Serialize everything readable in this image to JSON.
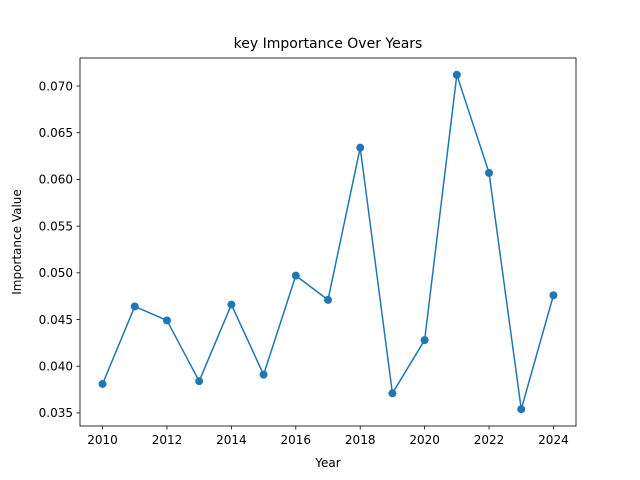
{
  "chart_data": {
    "type": "line",
    "title": "key Importance Over Years",
    "xlabel": "Year",
    "ylabel": "Importance Value",
    "x": [
      2010,
      2011,
      2012,
      2013,
      2014,
      2015,
      2016,
      2017,
      2018,
      2019,
      2020,
      2021,
      2022,
      2023,
      2024
    ],
    "series": [
      {
        "values": [
          0.0381,
          0.0464,
          0.0449,
          0.0384,
          0.0466,
          0.0391,
          0.0497,
          0.0471,
          0.0634,
          0.0371,
          0.0428,
          0.0712,
          0.0607,
          0.0354,
          0.0476
        ],
        "color": "#1f77b4",
        "marker": "circle"
      }
    ],
    "xlim": [
      2009.3,
      2024.7
    ],
    "ylim": [
      0.0336,
      0.073
    ],
    "xticks": [
      2010,
      2012,
      2014,
      2016,
      2018,
      2020,
      2022,
      2024
    ],
    "xtick_labels": [
      "2010",
      "2012",
      "2014",
      "2016",
      "2018",
      "2020",
      "2022",
      "2024"
    ],
    "yticks": [
      0.035,
      0.04,
      0.045,
      0.05,
      0.055,
      0.06,
      0.065,
      0.07
    ],
    "ytick_labels": [
      "0.035",
      "0.040",
      "0.045",
      "0.050",
      "0.055",
      "0.060",
      "0.065",
      "0.070"
    ],
    "grid": false,
    "legend": false
  }
}
